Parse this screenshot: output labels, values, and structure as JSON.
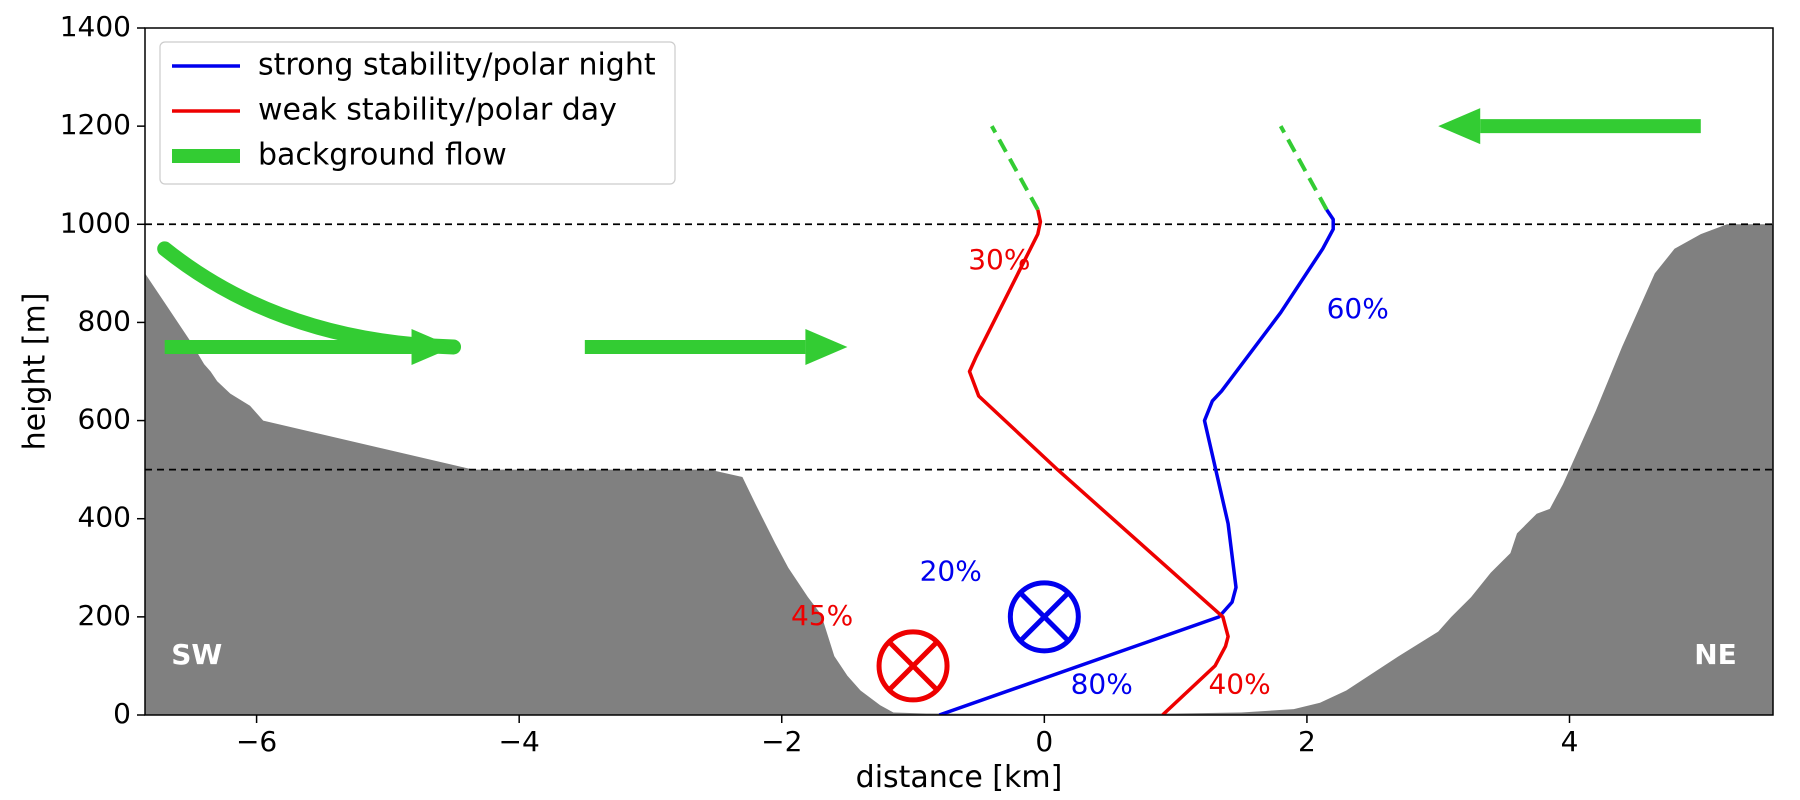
{
  "chart_data": {
    "type": "line",
    "xlabel": "distance [km]",
    "ylabel": "height [m]",
    "xlim": [
      -6.85,
      5.55
    ],
    "ylim": [
      0,
      1400
    ],
    "x_ticks": [
      -6,
      -4,
      -2,
      0,
      2,
      4
    ],
    "x_tick_labels": [
      "−6",
      "−4",
      "−2",
      "0",
      "2",
      "4"
    ],
    "y_ticks": [
      0,
      200,
      400,
      600,
      800,
      1000,
      1200,
      1400
    ],
    "y_tick_labels": [
      "0",
      "200",
      "400",
      "600",
      "800",
      "1000",
      "1200",
      "1400"
    ],
    "grid": false,
    "legend": {
      "placement": "top-left",
      "entries": [
        {
          "label": "strong stability/polar night",
          "color": "#0000ee",
          "style": "line"
        },
        {
          "label": "weak stability/polar day",
          "color": "#ee0000",
          "style": "line"
        },
        {
          "label": "background flow",
          "color": "#33cc33",
          "style": "thick-line"
        }
      ]
    },
    "reference_lines": [
      {
        "y": 1000,
        "style": "dashed",
        "color": "#000000"
      },
      {
        "y": 500,
        "style": "dashed",
        "color": "#000000"
      }
    ],
    "terrain": {
      "color": "#808080",
      "points": [
        [
          -6.85,
          900
        ],
        [
          -6.7,
          840
        ],
        [
          -6.5,
          760
        ],
        [
          -6.4,
          715
        ],
        [
          -6.35,
          700
        ],
        [
          -6.3,
          680
        ],
        [
          -6.2,
          655
        ],
        [
          -6.05,
          630
        ],
        [
          -5.95,
          600
        ],
        [
          -4.35,
          500
        ],
        [
          -2.55,
          500
        ],
        [
          -2.3,
          485
        ],
        [
          -2.2,
          430
        ],
        [
          -2.05,
          350
        ],
        [
          -1.95,
          300
        ],
        [
          -1.8,
          240
        ],
        [
          -1.7,
          205
        ],
        [
          -1.6,
          120
        ],
        [
          -1.5,
          80
        ],
        [
          -1.4,
          50
        ],
        [
          -1.25,
          20
        ],
        [
          -1.15,
          5
        ],
        [
          -0.9,
          3
        ],
        [
          0.0,
          2
        ],
        [
          1.0,
          3
        ],
        [
          1.5,
          5
        ],
        [
          1.9,
          12
        ],
        [
          2.1,
          25
        ],
        [
          2.3,
          50
        ],
        [
          2.7,
          120
        ],
        [
          3.0,
          170
        ],
        [
          3.1,
          200
        ],
        [
          3.25,
          240
        ],
        [
          3.4,
          290
        ],
        [
          3.55,
          330
        ],
        [
          3.6,
          370
        ],
        [
          3.75,
          410
        ],
        [
          3.85,
          420
        ],
        [
          3.95,
          470
        ],
        [
          4.05,
          530
        ],
        [
          4.2,
          620
        ],
        [
          4.4,
          750
        ],
        [
          4.65,
          900
        ],
        [
          4.8,
          950
        ],
        [
          5.0,
          980
        ],
        [
          5.2,
          1000
        ],
        [
          5.55,
          1000
        ]
      ]
    },
    "series": [
      {
        "name": "strong stability/polar night",
        "color": "#0000ee",
        "points": [
          [
            -0.8,
            0
          ],
          [
            1.33,
            200
          ],
          [
            1.43,
            230
          ],
          [
            1.46,
            260
          ],
          [
            1.4,
            390
          ],
          [
            1.22,
            600
          ],
          [
            1.28,
            640
          ],
          [
            1.35,
            660
          ],
          [
            1.8,
            820
          ],
          [
            2.12,
            950
          ],
          [
            2.2,
            990
          ],
          [
            2.2,
            1010
          ],
          [
            2.15,
            1030
          ]
        ],
        "extension": [
          [
            2.15,
            1030
          ],
          [
            1.8,
            1200
          ]
        ]
      },
      {
        "name": "weak stability/polar day",
        "color": "#ee0000",
        "points": [
          [
            0.9,
            0
          ],
          [
            1.3,
            100
          ],
          [
            1.38,
            140
          ],
          [
            1.4,
            160
          ],
          [
            1.36,
            200
          ],
          [
            0.1,
            500
          ],
          [
            -0.5,
            650
          ],
          [
            -0.57,
            700
          ],
          [
            -0.52,
            730
          ],
          [
            -0.05,
            980
          ],
          [
            -0.03,
            1005
          ],
          [
            -0.05,
            1030
          ]
        ],
        "extension": [
          [
            -0.05,
            1030
          ],
          [
            -0.4,
            1200
          ]
        ]
      }
    ],
    "annotations": [
      {
        "text": "30%",
        "x": -0.58,
        "y": 925,
        "color": "#ee0000"
      },
      {
        "text": "60%",
        "x": 2.15,
        "y": 825,
        "color": "#0000ee"
      },
      {
        "text": "20%",
        "x": -0.95,
        "y": 290,
        "color": "#0000ee"
      },
      {
        "text": "45%",
        "x": -1.93,
        "y": 200,
        "color": "#ee0000"
      },
      {
        "text": "80%",
        "x": 0.2,
        "y": 60,
        "color": "#0000ee"
      },
      {
        "text": "40%",
        "x": 1.25,
        "y": 60,
        "color": "#ee0000"
      },
      {
        "text": "SW",
        "x": -6.65,
        "y": 120,
        "color": "#ffffff"
      },
      {
        "text": "NE",
        "x": 4.95,
        "y": 120,
        "color": "#ffffff"
      }
    ],
    "into_page_markers": [
      {
        "x": 0.0,
        "y": 200,
        "color": "#0000ee"
      },
      {
        "x": -1.0,
        "y": 100,
        "color": "#ee0000"
      }
    ],
    "flow_arrows": [
      {
        "from": [
          -6.7,
          750
        ],
        "to": [
          -4.5,
          750
        ],
        "color": "#33cc33"
      },
      {
        "from": [
          -3.5,
          750
        ],
        "to": [
          -1.5,
          750
        ],
        "color": "#33cc33"
      },
      {
        "from": [
          5.0,
          1200
        ],
        "to": [
          3.0,
          1200
        ],
        "color": "#33cc33"
      }
    ],
    "flow_curve": {
      "points": [
        [
          -6.7,
          950
        ],
        [
          -6.0,
          800
        ],
        [
          -5.2,
          755
        ],
        [
          -4.5,
          750
        ]
      ],
      "color": "#33cc33"
    }
  }
}
